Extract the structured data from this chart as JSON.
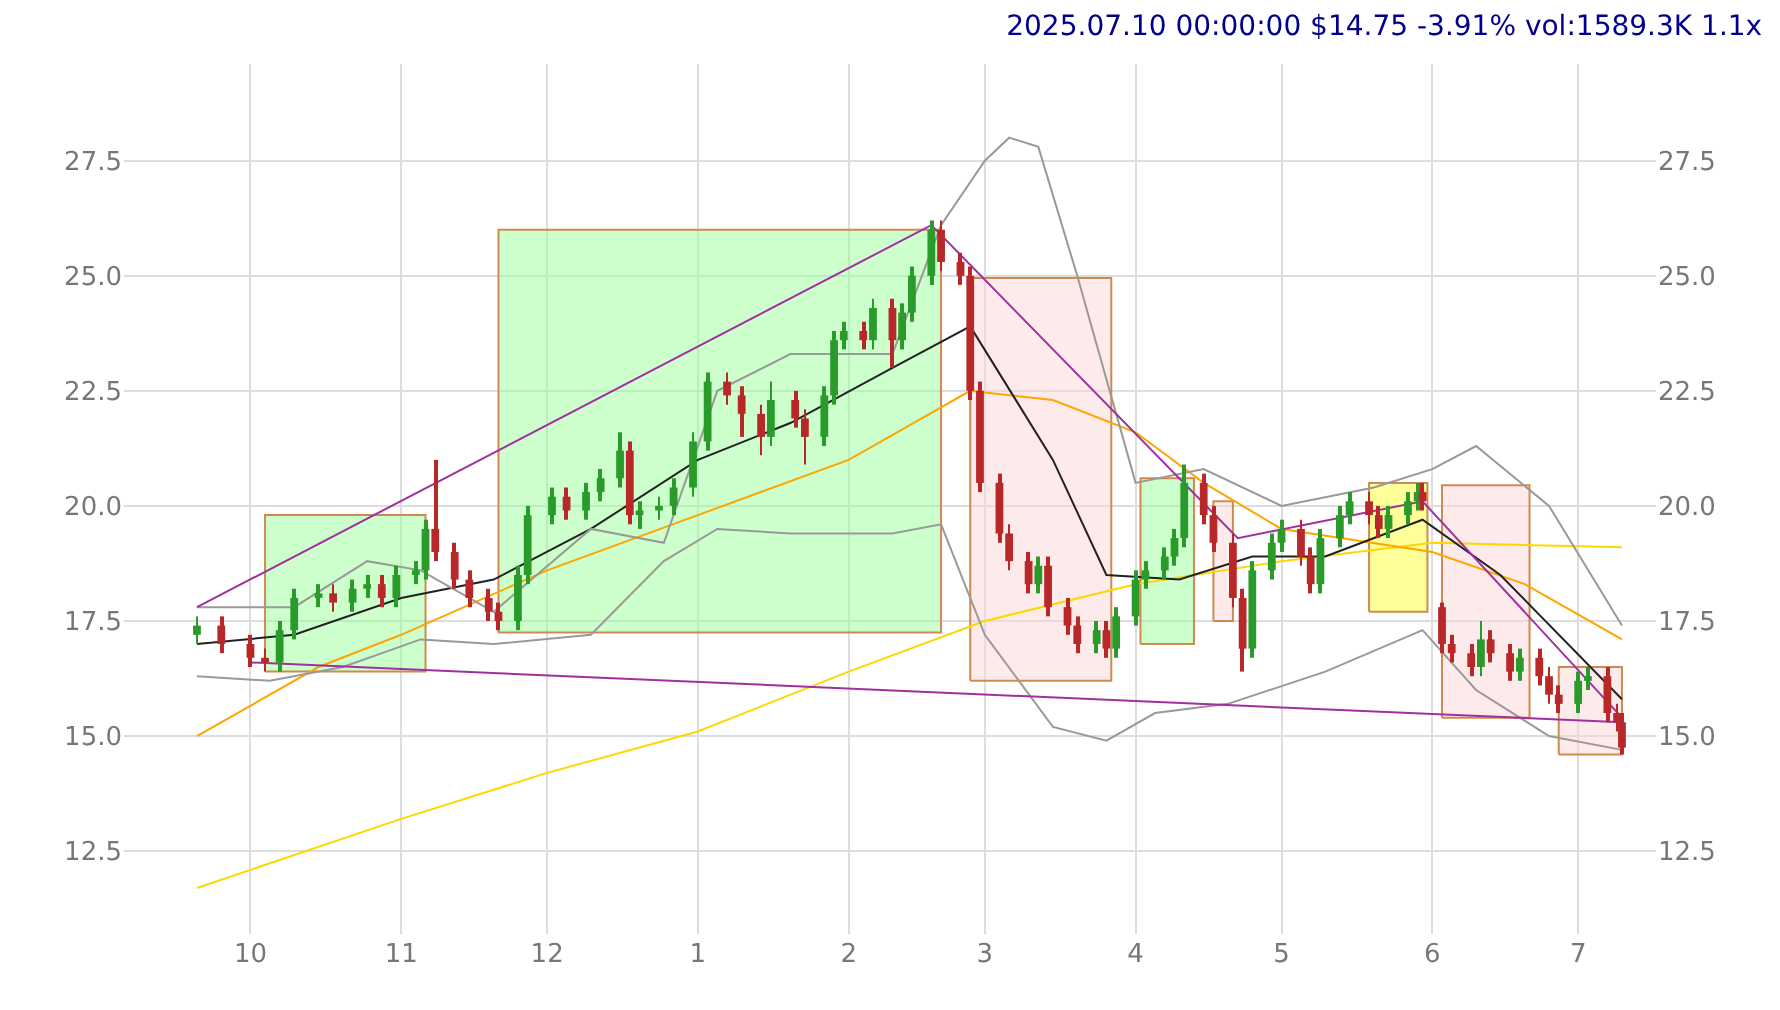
{
  "chart_data": {
    "type": "candlestick",
    "title": "2025.07.10 00:00:00 $14.75 -3.91% vol:1589.3K 1.1x",
    "x": [
      "2024-09-20",
      "2024-09-25",
      "2024-10-01",
      "2024-10-04",
      "2024-10-07",
      "2024-10-10",
      "2024-10-15",
      "2024-10-18",
      "2024-10-22",
      "2024-10-25",
      "2024-10-28",
      "2024-10-31",
      "2024-11-04",
      "2024-11-06",
      "2024-11-08",
      "2024-11-12",
      "2024-11-15",
      "2024-11-19",
      "2024-11-21",
      "2024-11-25",
      "2024-11-27",
      "2024-12-02",
      "2024-12-05",
      "2024-12-09",
      "2024-12-12",
      "2024-12-16",
      "2024-12-18",
      "2024-12-20",
      "2024-12-24",
      "2024-12-27",
      "2024-12-31",
      "2025-01-03",
      "2025-01-07",
      "2025-01-10",
      "2025-01-14",
      "2025-01-16",
      "2025-01-21",
      "2025-01-23",
      "2025-01-27",
      "2025-01-29",
      "2025-01-31",
      "2025-02-04",
      "2025-02-06",
      "2025-02-10",
      "2025-02-12",
      "2025-02-14",
      "2025-02-18",
      "2025-02-20",
      "2025-02-24",
      "2025-02-26",
      "2025-02-28",
      "2025-03-04",
      "2025-03-06",
      "2025-03-10",
      "2025-03-12",
      "2025-03-14",
      "2025-03-18",
      "2025-03-20",
      "2025-03-24",
      "2025-03-26",
      "2025-03-28",
      "2025-04-01",
      "2025-04-03",
      "2025-04-07",
      "2025-04-09",
      "2025-04-11",
      "2025-04-15",
      "2025-04-17",
      "2025-04-21",
      "2025-04-23",
      "2025-04-25",
      "2025-04-29",
      "2025-05-01",
      "2025-05-05",
      "2025-05-07",
      "2025-05-09",
      "2025-05-13",
      "2025-05-15",
      "2025-05-19",
      "2025-05-21",
      "2025-05-23",
      "2025-05-27",
      "2025-05-29",
      "2025-05-30",
      "2025-06-03",
      "2025-06-05",
      "2025-06-09",
      "2025-06-11",
      "2025-06-13",
      "2025-06-17",
      "2025-06-19",
      "2025-06-23",
      "2025-06-25",
      "2025-06-27",
      "2025-07-01",
      "2025-07-03",
      "2025-07-07",
      "2025-07-09",
      "2025-07-10"
    ],
    "ohlc": [
      [
        17.2,
        17.6,
        17.0,
        17.4
      ],
      [
        17.4,
        17.6,
        16.8,
        17.0
      ],
      [
        17.0,
        17.2,
        16.5,
        16.7
      ],
      [
        16.7,
        16.9,
        16.4,
        16.6
      ],
      [
        16.6,
        17.5,
        16.4,
        17.3
      ],
      [
        17.3,
        18.2,
        17.1,
        18.0
      ],
      [
        18.0,
        18.3,
        17.8,
        18.1
      ],
      [
        18.1,
        18.3,
        17.7,
        17.9
      ],
      [
        17.9,
        18.4,
        17.7,
        18.2
      ],
      [
        18.2,
        18.5,
        18.0,
        18.3
      ],
      [
        18.3,
        18.5,
        17.8,
        18.0
      ],
      [
        18.0,
        18.7,
        17.8,
        18.5
      ],
      [
        18.5,
        18.8,
        18.3,
        18.6
      ],
      [
        18.6,
        19.7,
        18.4,
        19.5
      ],
      [
        19.5,
        21.0,
        18.8,
        19.0
      ],
      [
        19.0,
        19.2,
        18.2,
        18.4
      ],
      [
        18.4,
        18.6,
        17.8,
        18.0
      ],
      [
        18.0,
        18.2,
        17.5,
        17.7
      ],
      [
        17.7,
        17.9,
        17.3,
        17.5
      ],
      [
        17.5,
        18.7,
        17.3,
        18.5
      ],
      [
        18.5,
        20.0,
        18.3,
        19.8
      ],
      [
        19.8,
        20.4,
        19.6,
        20.2
      ],
      [
        20.2,
        20.4,
        19.7,
        19.9
      ],
      [
        19.9,
        20.5,
        19.7,
        20.3
      ],
      [
        20.3,
        20.8,
        20.1,
        20.6
      ],
      [
        20.6,
        21.6,
        20.4,
        21.2
      ],
      [
        21.2,
        21.4,
        19.6,
        19.8
      ],
      [
        19.8,
        20.1,
        19.5,
        19.9
      ],
      [
        19.9,
        20.2,
        19.7,
        20.0
      ],
      [
        20.0,
        20.6,
        19.8,
        20.4
      ],
      [
        20.4,
        21.6,
        20.2,
        21.4
      ],
      [
        21.4,
        22.9,
        21.2,
        22.7
      ],
      [
        22.7,
        22.9,
        22.2,
        22.4
      ],
      [
        22.4,
        22.6,
        21.5,
        22.0
      ],
      [
        22.0,
        22.2,
        21.1,
        21.5
      ],
      [
        21.5,
        22.7,
        21.3,
        22.3
      ],
      [
        22.3,
        22.5,
        21.7,
        21.9
      ],
      [
        21.9,
        22.1,
        20.9,
        21.5
      ],
      [
        21.5,
        22.6,
        21.3,
        22.4
      ],
      [
        22.4,
        23.8,
        22.2,
        23.6
      ],
      [
        23.6,
        24.0,
        23.4,
        23.8
      ],
      [
        23.8,
        24.0,
        23.4,
        23.6
      ],
      [
        23.6,
        24.5,
        23.4,
        24.3
      ],
      [
        24.3,
        24.5,
        23.0,
        23.6
      ],
      [
        23.6,
        24.4,
        23.4,
        24.2
      ],
      [
        24.2,
        25.2,
        24.0,
        25.0
      ],
      [
        25.0,
        26.2,
        24.8,
        26.0
      ],
      [
        26.0,
        26.2,
        25.1,
        25.3
      ],
      [
        25.3,
        25.5,
        24.8,
        25.0
      ],
      [
        25.0,
        25.2,
        22.3,
        22.5
      ],
      [
        22.5,
        22.7,
        20.3,
        20.5
      ],
      [
        20.5,
        20.7,
        19.2,
        19.4
      ],
      [
        19.4,
        19.6,
        18.6,
        18.8
      ],
      [
        18.8,
        19.0,
        18.1,
        18.3
      ],
      [
        18.3,
        18.9,
        18.1,
        18.7
      ],
      [
        18.7,
        18.9,
        17.6,
        17.8
      ],
      [
        17.8,
        18.0,
        17.2,
        17.4
      ],
      [
        17.4,
        17.6,
        16.8,
        17.0
      ],
      [
        17.0,
        17.5,
        16.8,
        17.3
      ],
      [
        17.3,
        17.5,
        16.7,
        16.9
      ],
      [
        16.9,
        17.8,
        16.7,
        17.6
      ],
      [
        17.6,
        18.6,
        17.4,
        18.4
      ],
      [
        18.4,
        18.8,
        18.2,
        18.6
      ],
      [
        18.6,
        19.1,
        18.4,
        18.9
      ],
      [
        18.9,
        19.5,
        18.7,
        19.3
      ],
      [
        19.3,
        20.9,
        19.1,
        20.5
      ],
      [
        20.5,
        20.7,
        19.6,
        19.8
      ],
      [
        19.8,
        20.0,
        19.0,
        19.2
      ],
      [
        19.2,
        19.4,
        17.8,
        18.0
      ],
      [
        18.0,
        18.2,
        16.4,
        16.9
      ],
      [
        16.9,
        18.8,
        16.7,
        18.6
      ],
      [
        18.6,
        19.4,
        18.4,
        19.2
      ],
      [
        19.2,
        19.7,
        19.0,
        19.5
      ],
      [
        19.5,
        19.7,
        18.7,
        18.9
      ],
      [
        18.9,
        19.1,
        18.1,
        18.3
      ],
      [
        18.3,
        19.5,
        18.1,
        19.3
      ],
      [
        19.3,
        20.0,
        19.1,
        19.8
      ],
      [
        19.8,
        20.3,
        19.6,
        20.1
      ],
      [
        20.1,
        20.3,
        19.6,
        19.8
      ],
      [
        19.8,
        20.0,
        19.3,
        19.5
      ],
      [
        19.5,
        20.0,
        19.3,
        19.8
      ],
      [
        19.8,
        20.3,
        19.6,
        20.1
      ],
      [
        20.1,
        20.5,
        19.9,
        20.3
      ],
      [
        20.3,
        20.5,
        19.9,
        20.1
      ],
      [
        17.8,
        17.9,
        16.8,
        17.0
      ],
      [
        17.0,
        17.2,
        16.6,
        16.8
      ],
      [
        16.8,
        17.0,
        16.3,
        16.5
      ],
      [
        16.5,
        17.5,
        16.3,
        17.1
      ],
      [
        17.1,
        17.3,
        16.6,
        16.8
      ],
      [
        16.8,
        17.0,
        16.2,
        16.4
      ],
      [
        16.4,
        16.9,
        16.2,
        16.7
      ],
      [
        16.7,
        16.9,
        16.1,
        16.3
      ],
      [
        16.3,
        16.5,
        15.7,
        15.9
      ],
      [
        15.9,
        16.1,
        15.5,
        15.7
      ],
      [
        15.7,
        16.4,
        15.5,
        16.2
      ],
      [
        16.2,
        16.5,
        16.0,
        16.3
      ],
      [
        16.3,
        16.5,
        15.3,
        15.5
      ],
      [
        15.5,
        15.7,
        15.1,
        15.3
      ],
      [
        15.3,
        15.5,
        14.6,
        14.75
      ]
    ],
    "colors": [
      "#2a9a2a",
      "#b82828",
      "#b82828",
      "#b82828",
      "#2a9a2a",
      "#2a9a2a",
      "#2a9a2a",
      "#b82828",
      "#2a9a2a",
      "#2a9a2a",
      "#b82828",
      "#2a9a2a",
      "#2a9a2a",
      "#2a9a2a",
      "#b82828",
      "#b82828",
      "#b82828",
      "#b82828",
      "#b82828",
      "#2a9a2a",
      "#2a9a2a",
      "#2a9a2a",
      "#b82828",
      "#2a9a2a",
      "#2a9a2a",
      "#2a9a2a",
      "#b82828",
      "#2a9a2a",
      "#2a9a2a",
      "#2a9a2a",
      "#2a9a2a",
      "#2a9a2a",
      "#b82828",
      "#b82828",
      "#b82828",
      "#2a9a2a",
      "#b82828",
      "#b82828",
      "#2a9a2a",
      "#2a9a2a",
      "#2a9a2a",
      "#b82828",
      "#2a9a2a",
      "#b82828",
      "#2a9a2a",
      "#2a9a2a",
      "#2a9a2a",
      "#b82828",
      "#b82828",
      "#b82828",
      "#b82828",
      "#b82828",
      "#b82828",
      "#b82828",
      "#2a9a2a",
      "#b82828",
      "#b82828",
      "#b82828",
      "#2a9a2a",
      "#b82828",
      "#2a9a2a",
      "#2a9a2a",
      "#2a9a2a",
      "#2a9a2a",
      "#2a9a2a",
      "#2a9a2a",
      "#b82828",
      "#b82828",
      "#b82828",
      "#b82828",
      "#2a9a2a",
      "#2a9a2a",
      "#2a9a2a",
      "#b82828",
      "#b82828",
      "#2a9a2a",
      "#2a9a2a",
      "#2a9a2a",
      "#b82828",
      "#b82828",
      "#2a9a2a",
      "#2a9a2a",
      "#2a9a2a",
      "#b82828",
      "#b82828",
      "#b82828",
      "#b82828",
      "#2a9a2a",
      "#b82828",
      "#b82828",
      "#2a9a2a",
      "#b82828",
      "#b82828",
      "#b82828",
      "#2a9a2a",
      "#2a9a2a",
      "#b82828",
      "#b82828",
      "#b82828"
    ],
    "series": [
      {
        "type": "area",
        "color": "#99ff99",
        "x": [
          "2024-10-04",
          "2024-10-04",
          "2024-11-06",
          "2024-11-06",
          "2024-10-04"
        ],
        "values": [
          16.4,
          19.8,
          19.8,
          16.4,
          16.4
        ]
      },
      {
        "type": "area",
        "color": "#99ff99",
        "x": [
          "2024-11-21",
          "2024-11-21",
          "2025-02-20",
          "2025-02-20",
          "2024-11-21"
        ],
        "values": [
          17.25,
          26.0,
          26.0,
          17.25,
          17.25
        ]
      },
      {
        "type": "area",
        "color": "#fcd8d8",
        "x": [
          "2025-02-26",
          "2025-02-26",
          "2025-03-27",
          "2025-03-27",
          "2025-02-26"
        ],
        "values": [
          16.2,
          24.95,
          24.95,
          16.2,
          16.2
        ]
      },
      {
        "type": "area",
        "color": "#99ff99",
        "x": [
          "2025-04-02",
          "2025-04-02",
          "2025-04-13",
          "2025-04-13",
          "2025-04-02"
        ],
        "values": [
          17.0,
          20.6,
          20.6,
          17.0,
          17.0
        ]
      },
      {
        "type": "area",
        "color": "#fcd8d8",
        "x": [
          "2025-04-17",
          "2025-04-17",
          "2025-04-21",
          "2025-04-21",
          "2025-04-17"
        ],
        "values": [
          17.5,
          20.1,
          20.1,
          17.5,
          17.5
        ]
      },
      {
        "type": "area",
        "color": "#ffff33",
        "x": [
          "2025-05-19",
          "2025-05-19",
          "2025-05-31",
          "2025-05-31",
          "2025-05-19"
        ],
        "values": [
          17.7,
          20.5,
          20.5,
          17.7,
          17.7
        ]
      },
      {
        "type": "area",
        "color": "#fcd8d8",
        "x": [
          "2025-06-03",
          "2025-06-03",
          "2025-06-21",
          "2025-06-21",
          "2025-06-03"
        ],
        "values": [
          15.4,
          20.45,
          20.45,
          15.4,
          15.4
        ]
      },
      {
        "type": "area",
        "color": "#fcd8d8",
        "x": [
          "2025-06-27",
          "2025-06-27",
          "2025-07-10",
          "2025-07-10",
          "2025-06-27"
        ],
        "values": [
          14.6,
          16.5,
          16.5,
          14.6,
          14.6
        ]
      },
      {
        "type": "line",
        "color": "#ffd700",
        "x": [
          "2024-09-20",
          "2024-11-01",
          "2024-12-01",
          "2025-01-01",
          "2025-02-01",
          "2025-03-01",
          "2025-04-01",
          "2025-05-01",
          "2025-06-01",
          "2025-07-10"
        ],
        "values": [
          11.7,
          13.2,
          14.2,
          15.1,
          16.4,
          17.5,
          18.3,
          18.8,
          19.2,
          19.1
        ]
      },
      {
        "type": "line",
        "color": "#ffa500",
        "x": [
          "2024-09-20",
          "2024-10-15",
          "2024-11-01",
          "2024-12-01",
          "2025-01-01",
          "2025-02-01",
          "2025-02-26",
          "2025-03-15",
          "2025-04-01",
          "2025-04-15",
          "2025-05-01",
          "2025-06-01",
          "2025-06-20",
          "2025-07-10"
        ],
        "values": [
          15.0,
          16.5,
          17.2,
          18.6,
          19.8,
          21.0,
          22.5,
          22.3,
          21.6,
          20.5,
          19.5,
          19.0,
          18.3,
          17.1
        ]
      },
      {
        "type": "line",
        "color": "#222222",
        "x": [
          "2024-09-20",
          "2024-10-10",
          "2024-11-01",
          "2024-11-20",
          "2024-12-10",
          "2025-01-01",
          "2025-01-20",
          "2025-02-10",
          "2025-02-26",
          "2025-03-15",
          "2025-03-26",
          "2025-04-10",
          "2025-04-25",
          "2025-05-10",
          "2025-05-30",
          "2025-06-15",
          "2025-07-10"
        ],
        "values": [
          17.0,
          17.2,
          18.0,
          18.4,
          19.5,
          21.0,
          21.8,
          23.0,
          23.9,
          21.0,
          18.5,
          18.4,
          18.9,
          18.9,
          19.7,
          18.5,
          15.8
        ]
      },
      {
        "type": "line",
        "color": "#999999",
        "x": [
          "2024-09-20",
          "2024-10-10",
          "2024-10-25",
          "2024-11-05",
          "2024-11-20",
          "2024-12-10",
          "2024-12-25",
          "2025-01-05",
          "2025-01-20",
          "2025-02-10",
          "2025-02-20",
          "2025-03-01",
          "2025-03-06",
          "2025-03-12",
          "2025-03-20",
          "2025-04-01",
          "2025-04-15",
          "2025-05-01",
          "2025-05-20",
          "2025-06-01",
          "2025-06-10",
          "2025-06-25",
          "2025-07-10"
        ],
        "values": [
          17.8,
          17.8,
          18.8,
          18.6,
          17.7,
          19.5,
          19.2,
          22.5,
          23.3,
          23.3,
          26.1,
          27.5,
          28.0,
          27.8,
          25.0,
          20.5,
          20.8,
          20.0,
          20.4,
          20.8,
          21.3,
          20.0,
          17.4
        ]
      },
      {
        "type": "line",
        "color": "#999999",
        "x": [
          "2024-09-20",
          "2024-10-05",
          "2024-10-20",
          "2024-11-05",
          "2024-11-20",
          "2024-12-10",
          "2024-12-25",
          "2025-01-05",
          "2025-01-20",
          "2025-02-10",
          "2025-02-20",
          "2025-03-01",
          "2025-03-15",
          "2025-03-26",
          "2025-04-05",
          "2025-04-20",
          "2025-05-10",
          "2025-05-30",
          "2025-06-10",
          "2025-06-25",
          "2025-07-10"
        ],
        "values": [
          16.3,
          16.2,
          16.5,
          17.1,
          17.0,
          17.2,
          18.8,
          19.5,
          19.4,
          19.4,
          19.6,
          17.2,
          15.2,
          14.9,
          15.5,
          15.7,
          16.4,
          17.3,
          16.0,
          15.0,
          14.7
        ]
      },
      {
        "type": "line",
        "color": "#a030a0",
        "x": [
          "2024-09-20",
          "2025-02-18",
          "2025-04-22",
          "2025-05-30",
          "2025-07-10"
        ],
        "values": [
          17.8,
          26.1,
          19.3,
          20.1,
          15.4
        ]
      },
      {
        "type": "line",
        "color": "#a030a0",
        "x": [
          "2024-10-01",
          "2025-07-10"
        ],
        "values": [
          16.6,
          15.3
        ]
      }
    ],
    "xlim": [
      "2024-09-05",
      "2025-07-17"
    ],
    "xticks": [
      {
        "value": "2024-10-01",
        "label": "10"
      },
      {
        "value": "2024-11-01",
        "label": "11"
      },
      {
        "value": "2024-12-01",
        "label": "12"
      },
      {
        "value": "2025-01-01",
        "label": "1"
      },
      {
        "value": "2025-02-01",
        "label": "2"
      },
      {
        "value": "2025-03-01",
        "label": "3"
      },
      {
        "value": "2025-04-01",
        "label": "4"
      },
      {
        "value": "2025-05-01",
        "label": "5"
      },
      {
        "value": "2025-06-01",
        "label": "6"
      },
      {
        "value": "2025-07-01",
        "label": "7"
      }
    ],
    "ylim": [
      10.7,
      29.6
    ],
    "yticks": [
      12.5,
      {
        "value": 15,
        "label": "15.0"
      },
      17.5,
      {
        "value": 20,
        "label": "20.0"
      },
      22.5,
      {
        "value": 25,
        "label": "25.0"
      },
      27.5
    ],
    "y2lim": [
      10.7,
      29.6
    ],
    "y2ticks": [
      12.5,
      {
        "value": 15,
        "label": "15.0"
      },
      17.5,
      {
        "value": 20,
        "label": "20.0"
      },
      22.5,
      {
        "value": 25,
        "label": "25.0"
      },
      27.5
    ],
    "grid": true
  }
}
